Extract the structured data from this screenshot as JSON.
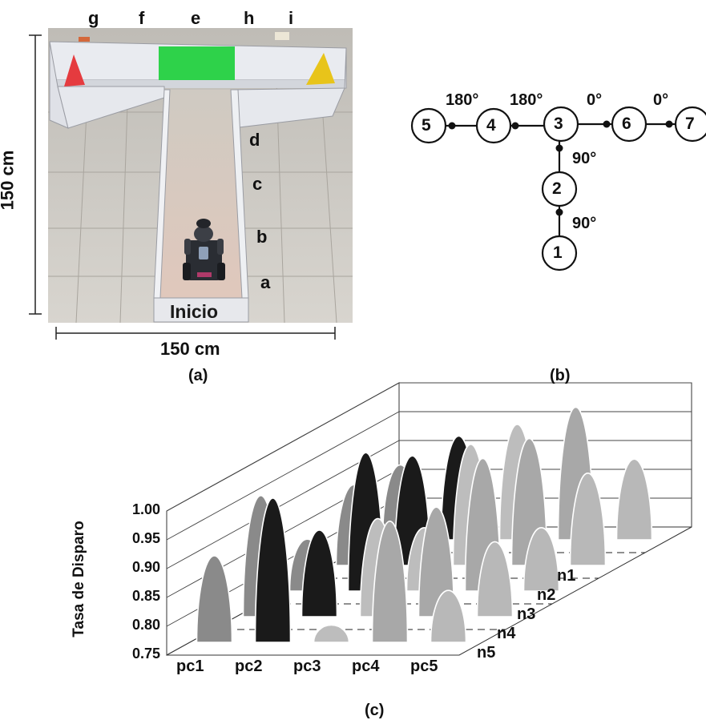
{
  "panel_a": {
    "top_labels": [
      "g",
      "f",
      "e",
      "h",
      "i"
    ],
    "side_labels": [
      "d",
      "c",
      "b",
      "a"
    ],
    "start_label": "Inicio",
    "height_label": "150 cm",
    "width_label": "150 cm",
    "caption": "(a)",
    "colors": {
      "left_marker": "#e53b3f",
      "center_marker": "#2ed24a",
      "right_marker": "#e8c41a"
    }
  },
  "panel_b": {
    "caption": "(b)",
    "nodes": [
      "5",
      "4",
      "3",
      "6",
      "7",
      "2",
      "1"
    ],
    "angles": [
      "180°",
      "180°",
      "0°",
      "0°",
      "90°",
      "90°"
    ]
  },
  "panel_c": {
    "caption": "(c)"
  },
  "chart_data": {
    "type": "bar",
    "style": "3d-bell-peaks",
    "ylabel": "Tasa de Disparo",
    "ylim": [
      0.75,
      1.0
    ],
    "yticks": [
      "1.00",
      "0.95",
      "0.90",
      "0.85",
      "0.80",
      "0.75"
    ],
    "categories": [
      "pc1",
      "pc2",
      "pc3",
      "pc4",
      "pc5"
    ],
    "rows": [
      "n1",
      "n2",
      "n3",
      "n4",
      "n5"
    ],
    "values": [
      [
        0.88,
        0.93,
        0.95,
        0.98,
        0.89
      ],
      [
        0.89,
        0.94,
        0.96,
        0.97,
        0.91
      ],
      [
        0.84,
        0.99,
        0.86,
        0.98,
        0.86
      ],
      [
        0.96,
        0.9,
        0.92,
        0.94,
        0.88
      ],
      [
        0.9,
        1.0,
        0.78,
        0.96,
        0.84
      ]
    ],
    "series_colors": [
      "#8a8a8a",
      "#1a1a1a",
      "#bdbdbd",
      "#a8a8a8",
      "#b8b8b8"
    ]
  }
}
